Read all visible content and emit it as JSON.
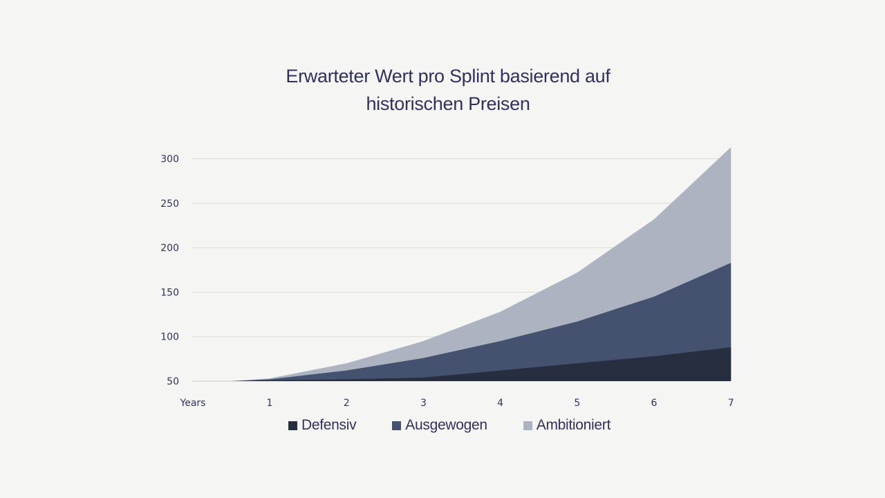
{
  "chart_data": {
    "type": "area",
    "stacked": false,
    "title_lines": [
      "Erwarteter Wert pro Splint basierend auf",
      "historischen Preisen"
    ],
    "x_label": "Years",
    "x": [
      0.5,
      1,
      2,
      3,
      4,
      5,
      6,
      7
    ],
    "x_ticks": [
      1,
      2,
      3,
      4,
      5,
      6,
      7
    ],
    "y_ticks": [
      50,
      100,
      150,
      200,
      250,
      300
    ],
    "ylim": [
      50,
      310
    ],
    "grid": true,
    "legend_position": "bottom",
    "series": [
      {
        "name": "Ambitioniert",
        "color": "#adb3c0",
        "values": [
          50,
          53,
          70,
          95,
          128,
          172,
          232,
          313
        ]
      },
      {
        "name": "Ausgewogen",
        "color": "#45526f",
        "values": [
          50,
          52,
          62,
          76,
          95,
          117,
          145,
          183
        ]
      },
      {
        "name": "Defensiv",
        "color": "#272e40",
        "values": [
          50,
          51,
          52,
          54,
          62,
          70,
          78,
          88
        ]
      }
    ],
    "legend_order": [
      "Defensiv",
      "Ausgewogen",
      "Ambitioniert"
    ]
  }
}
